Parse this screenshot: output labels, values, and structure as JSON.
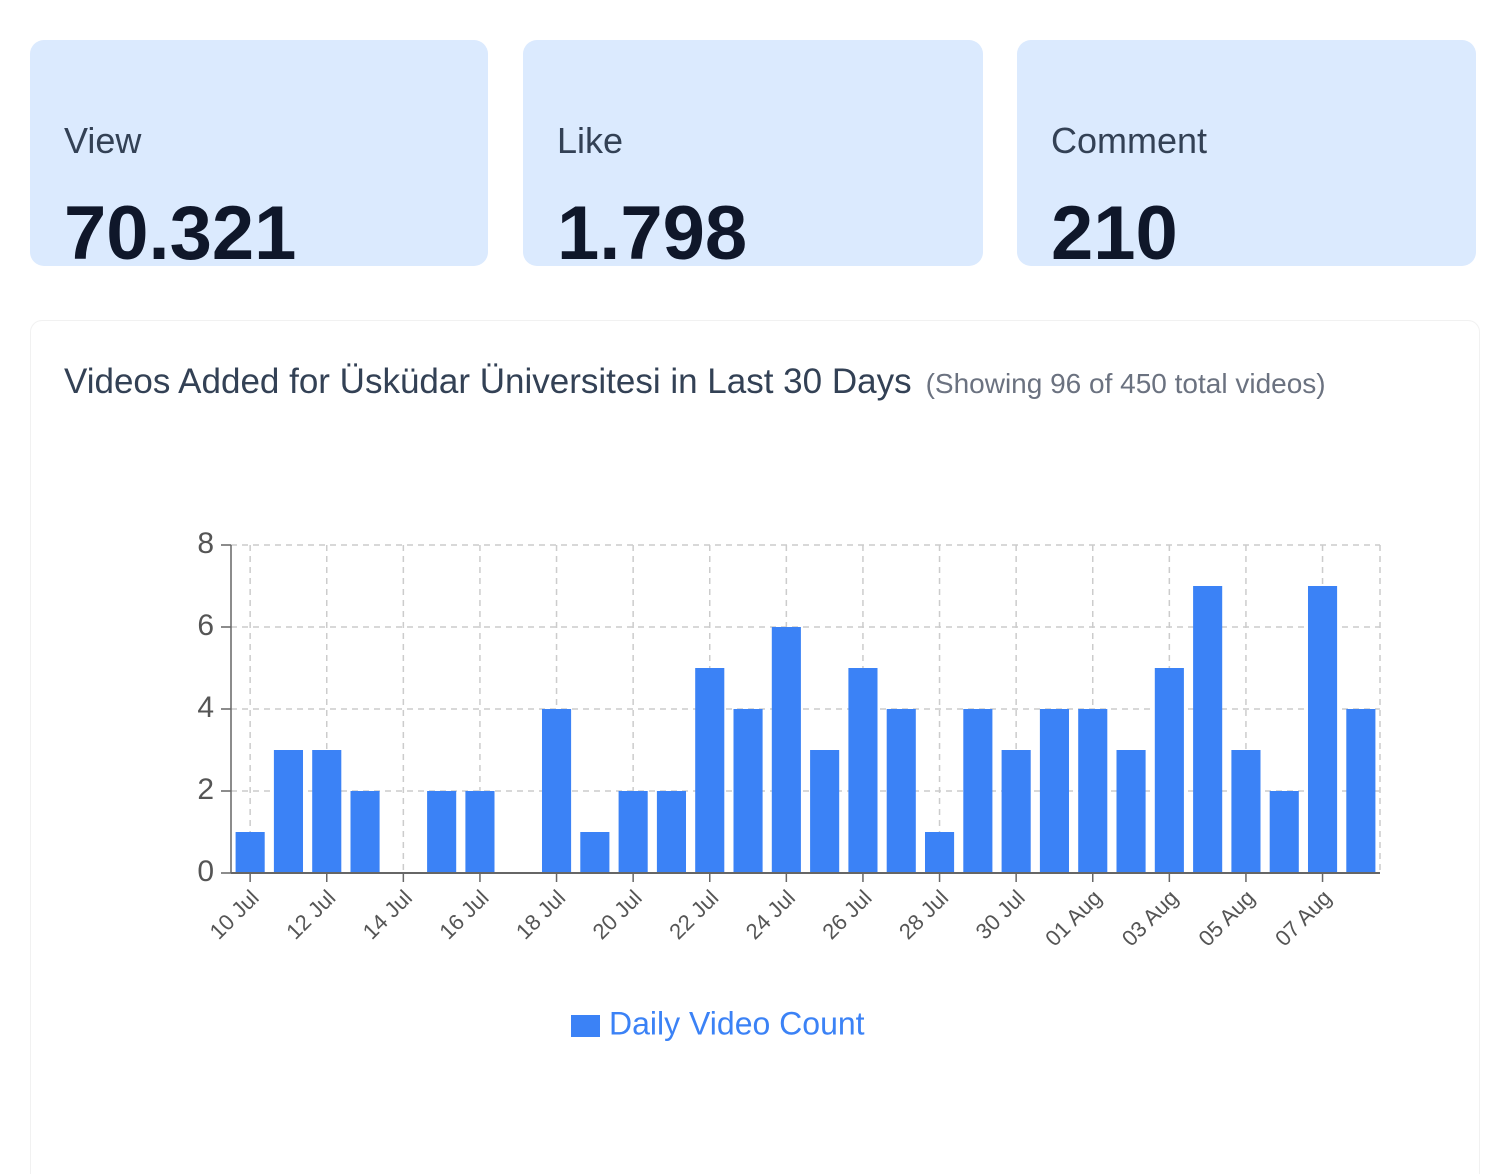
{
  "cards": [
    {
      "label": "View",
      "value": "70.321"
    },
    {
      "label": "Like",
      "value": "1.798"
    },
    {
      "label": "Comment",
      "value": "210"
    }
  ],
  "chart_data": {
    "type": "bar",
    "title": "Videos Added for Üsküdar Üniversitesi in Last 30 Days",
    "subtitle": "(Showing 96 of 450 total videos)",
    "categories": [
      "10 Jul",
      null,
      "12 Jul",
      null,
      "14 Jul",
      null,
      "16 Jul",
      null,
      "18 Jul",
      null,
      "20 Jul",
      null,
      "22 Jul",
      null,
      "24 Jul",
      null,
      "26 Jul",
      null,
      "28 Jul",
      null,
      "30 Jul",
      null,
      "01 Aug",
      null,
      "03 Aug",
      null,
      "05 Aug",
      null,
      "07 Aug",
      null
    ],
    "series": [
      {
        "name": "Daily Video Count",
        "color": "#3b82f6",
        "values": [
          1,
          3,
          3,
          2,
          0,
          2,
          2,
          0,
          4,
          1,
          2,
          2,
          5,
          4,
          6,
          3,
          5,
          4,
          1,
          4,
          3,
          4,
          4,
          3,
          5,
          7,
          3,
          2,
          7,
          4
        ]
      }
    ],
    "ylim": [
      0,
      8
    ],
    "yticks": [
      0,
      2,
      4,
      6,
      8
    ],
    "grid": true
  }
}
